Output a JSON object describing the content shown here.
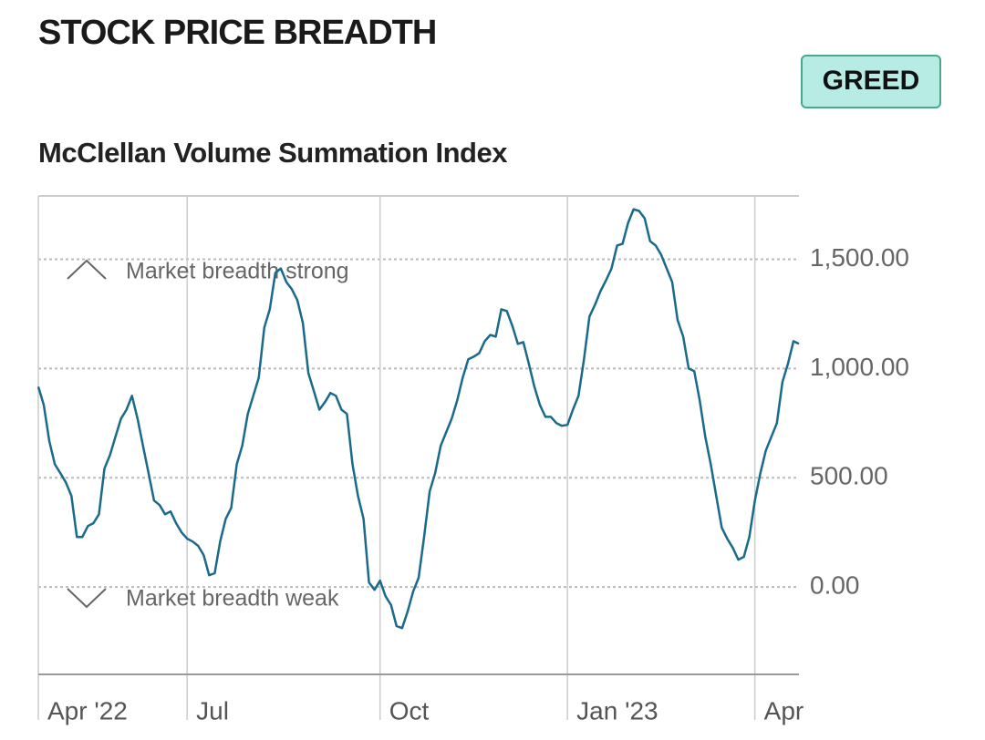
{
  "header": {
    "title": "STOCK PRICE BREADTH",
    "badge": "GREED"
  },
  "chart_data": {
    "type": "line",
    "title": "McClellan Volume Summation Index",
    "annotations": [
      "Market breadth strong",
      "Market breadth weak"
    ],
    "categories": [
      "Apr '22",
      null,
      null,
      null,
      null,
      null,
      null,
      null,
      null,
      null,
      null,
      null,
      null,
      null,
      null,
      null,
      null,
      null,
      null,
      null,
      null,
      null,
      null,
      null,
      null,
      null,
      null,
      "Jul",
      null,
      null,
      null,
      null,
      null,
      null,
      null,
      null,
      null,
      null,
      null,
      null,
      null,
      null,
      null,
      null,
      null,
      null,
      null,
      null,
      null,
      null,
      null,
      null,
      null,
      null,
      null,
      null,
      null,
      null,
      null,
      null,
      null,
      null,
      "Oct",
      null,
      null,
      null,
      null,
      null,
      null,
      null,
      null,
      null,
      null,
      null,
      null,
      null,
      null,
      null,
      null,
      null,
      null,
      null,
      null,
      null,
      null,
      null,
      null,
      null,
      null,
      null,
      null,
      null,
      null,
      null,
      null,
      null,
      "Jan '23",
      null,
      null,
      null,
      null,
      null,
      null,
      null,
      null,
      null,
      null,
      null,
      null,
      null,
      null,
      null,
      null,
      null,
      null,
      null,
      null,
      null,
      null,
      null,
      null,
      null,
      null,
      null,
      null,
      null,
      null,
      null,
      null,
      null,
      "Apr",
      null,
      null,
      null,
      null,
      null,
      null,
      null,
      null
    ],
    "series": [
      {
        "name": "McClellan Volume Summation Index",
        "color": "#1a6a8c",
        "values": [
          917,
          833,
          667,
          562,
          521,
          479,
          417,
          229,
          229,
          279,
          292,
          333,
          542,
          604,
          688,
          771,
          812,
          875,
          771,
          646,
          521,
          396,
          375,
          333,
          346,
          292,
          250,
          221,
          208,
          188,
          146,
          54,
          63,
          208,
          312,
          362,
          562,
          646,
          792,
          875,
          958,
          1188,
          1271,
          1438,
          1458,
          1396,
          1363,
          1313,
          1208,
          979,
          896,
          812,
          846,
          888,
          875,
          812,
          792,
          562,
          417,
          312,
          21,
          -13,
          29,
          -42,
          -83,
          -179,
          -188,
          -113,
          -21,
          42,
          229,
          437,
          521,
          646,
          708,
          771,
          854,
          958,
          1042,
          1054,
          1071,
          1125,
          1154,
          1146,
          1271,
          1263,
          1196,
          1113,
          1121,
          1021,
          917,
          833,
          779,
          779,
          750,
          738,
          742,
          812,
          875,
          1042,
          1238,
          1292,
          1354,
          1404,
          1458,
          1563,
          1571,
          1667,
          1729,
          1721,
          1688,
          1583,
          1563,
          1521,
          1458,
          1396,
          1221,
          1146,
          1000,
          988,
          854,
          688,
          562,
          417,
          271,
          221,
          179,
          125,
          138,
          229,
          396,
          521,
          625,
          688,
          750,
          938,
          1021,
          1125,
          1113
        ]
      }
    ],
    "ylim": [
      -400,
      1790
    ],
    "yticks": [
      {
        "value": 0,
        "label": "0.00"
      },
      {
        "value": 500,
        "label": "500.00"
      },
      {
        "value": 1000,
        "label": "1,000.00"
      },
      {
        "value": 1500,
        "label": "1,500.00"
      }
    ],
    "grid": true
  }
}
